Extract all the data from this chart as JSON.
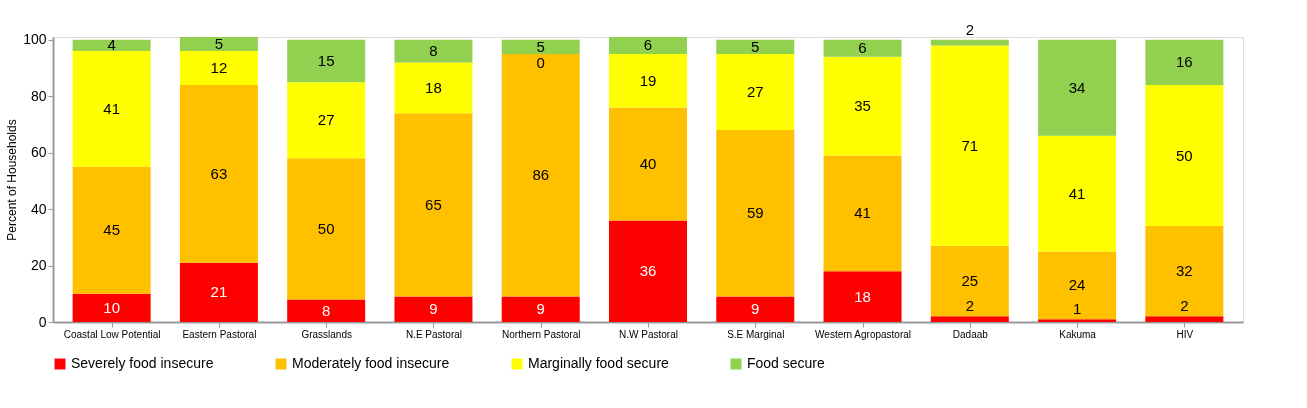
{
  "chart_data": {
    "type": "bar",
    "stacked": true,
    "ylabel": "Percent of Households",
    "categories": [
      "Coastal Low Potential",
      "Eastern Pastoral",
      "Grasslands",
      "N.E Pastoral",
      "Northern Pastoral",
      "N.W Pastoral",
      "S.E Marginal",
      "Western Agropastoral",
      "Dadaab",
      "Kakuma",
      "HIV"
    ],
    "series": [
      {
        "name": "Severely food insecure",
        "color": "#ff0000",
        "values": [
          10,
          21,
          8,
          9,
          9,
          36,
          9,
          18,
          2,
          1,
          2
        ]
      },
      {
        "name": "Moderately food insecure",
        "color": "#ffc000",
        "values": [
          45,
          63,
          50,
          65,
          86,
          40,
          59,
          41,
          25,
          24,
          32
        ]
      },
      {
        "name": "Marginally food secure",
        "color": "#ffff00",
        "values": [
          41,
          12,
          27,
          18,
          0,
          19,
          27,
          35,
          71,
          41,
          50
        ]
      },
      {
        "name": "Food secure",
        "color": "#92d050",
        "values": [
          4,
          5,
          15,
          8,
          5,
          6,
          5,
          6,
          2,
          34,
          16
        ]
      }
    ],
    "ylim": [
      0,
      101
    ],
    "yticks": [
      0,
      20,
      40,
      60,
      80,
      100
    ],
    "grid": false,
    "legend": "bottom",
    "data_labels": true
  }
}
